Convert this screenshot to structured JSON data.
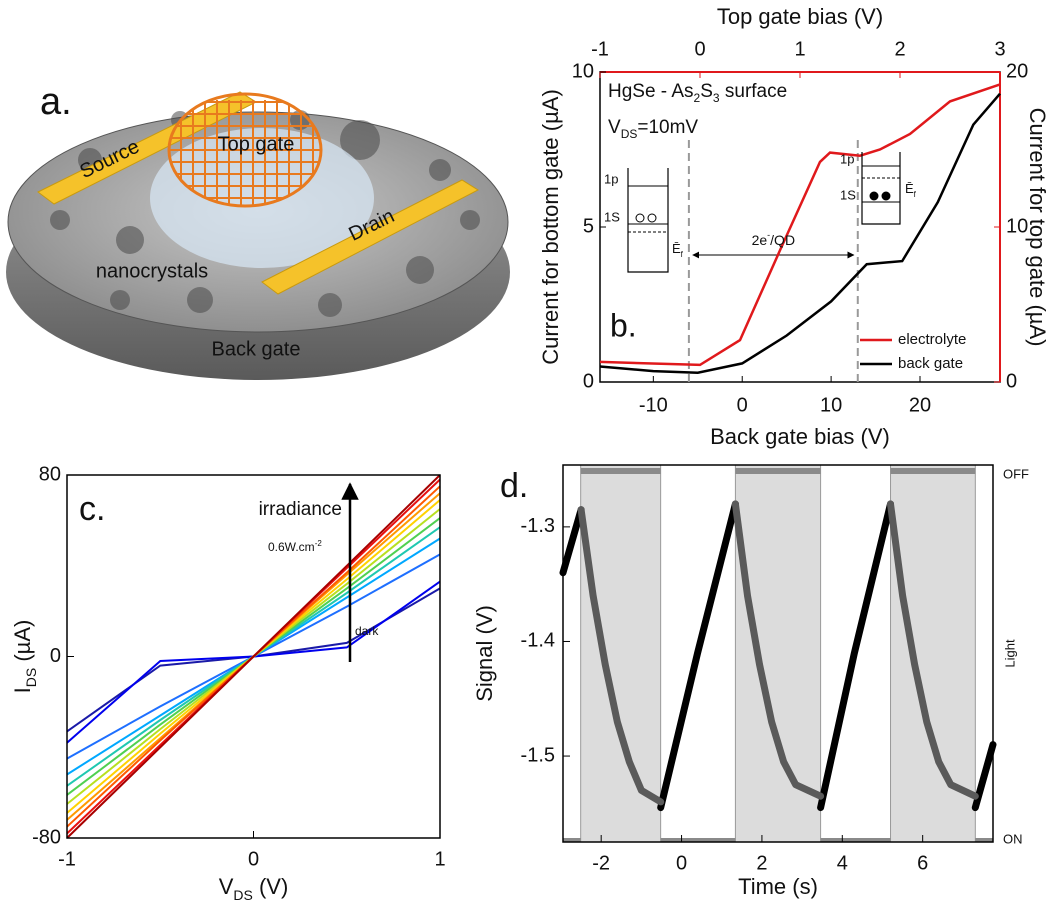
{
  "diagram": {
    "panel_label": "a.",
    "labels": {
      "source": "Source",
      "top_gate": "Top gate",
      "drain": "Drain",
      "nanocrystals": "nanocrystals",
      "back_gate": "Back gate"
    }
  },
  "chart_data": [
    {
      "type": "line",
      "panel_label": "b.",
      "xlabel": "Back gate bias (V)",
      "x2label": "Top gate bias (V)",
      "ylabel": "Current for bottom gate (µA)",
      "y2label": "Current for top gate (µA)",
      "xlim": [
        -16,
        29
      ],
      "xticks": [
        -10,
        0,
        10,
        20
      ],
      "x2lim": [
        -1,
        3
      ],
      "x2ticks": [
        -1,
        0,
        1,
        2,
        3
      ],
      "ylim": [
        0,
        10
      ],
      "yticks": [
        0,
        5,
        10
      ],
      "y2lim": [
        0,
        20
      ],
      "y2ticks": [
        0,
        10,
        20
      ],
      "legend": "lower right",
      "series": [
        {
          "name": "electrolyte",
          "color": "#e0191c",
          "axis": "y2",
          "xaxis": "x2",
          "x": [
            -1,
            0,
            0.4,
            0.8,
            1.2,
            1.3,
            1.6,
            1.8,
            2.1,
            2.5,
            3
          ],
          "values": [
            1.3,
            1.1,
            2.7,
            8.5,
            14.2,
            14.8,
            14.6,
            15,
            16,
            18.1,
            19.2
          ]
        },
        {
          "name": "back gate",
          "color": "#000000",
          "x": [
            -16,
            -10,
            -5,
            0,
            5,
            10,
            14,
            18,
            22,
            26,
            29
          ],
          "values": [
            0.5,
            0.35,
            0.3,
            0.6,
            1.5,
            2.6,
            3.8,
            3.9,
            5.8,
            8.3,
            9.3
          ]
        }
      ],
      "vlines": [
        -6,
        13
      ],
      "annotations": [
        {
          "parts": [
            {
              "text": "HgSe - As"
            },
            {
              "text": "2",
              "sub": true
            },
            {
              "text": "S"
            },
            {
              "text": "3",
              "sub": true
            },
            {
              "text": " surface"
            }
          ]
        },
        {
          "parts": [
            {
              "text": "V"
            },
            {
              "text": "DS",
              "sub": true
            },
            {
              "text": "=10mV"
            }
          ]
        },
        {
          "parts": [
            {
              "text": "2e"
            },
            {
              "text": "-",
              "sup": true
            },
            {
              "text": "/QD"
            }
          ]
        }
      ],
      "insets": [
        {
          "levels": [
            "1p",
            "1S"
          ],
          "fermi": {
            "parts": [
              {
                "text": "Ē"
              },
              {
                "text": "f",
                "sub": true
              }
            ]
          },
          "filled": false
        },
        {
          "levels": [
            "1p",
            "1S"
          ],
          "fermi": {
            "parts": [
              {
                "text": "Ē"
              },
              {
                "text": "f",
                "sub": true
              }
            ]
          },
          "filled": true
        }
      ]
    },
    {
      "type": "line",
      "panel_label": "c.",
      "xlabel": {
        "parts": [
          {
            "text": "V"
          },
          {
            "text": "DS",
            "sub": true
          },
          {
            "text": " (V)"
          }
        ]
      },
      "ylabel": {
        "parts": [
          {
            "text": "I"
          },
          {
            "text": "DS",
            "sub": true
          },
          {
            "text": " (µA)"
          }
        ]
      },
      "xlim": [
        -1,
        1
      ],
      "xticks": [
        -1,
        0,
        1
      ],
      "ylim": [
        -80,
        80
      ],
      "yticks": [
        -80,
        0,
        80
      ],
      "x": [
        -1,
        -0.5,
        0,
        0.5,
        1
      ],
      "series": [
        {
          "color": "#1a1aa8",
          "values": [
            -33,
            -4,
            0,
            6,
            30
          ]
        },
        {
          "color": "#0000ee",
          "values": [
            -38,
            -2,
            0,
            4,
            33
          ]
        },
        {
          "color": "#1e6fff",
          "values": [
            -45,
            -22,
            0,
            22,
            45
          ]
        },
        {
          "color": "#00a8ff",
          "values": [
            -52,
            -26,
            0,
            26,
            52
          ]
        },
        {
          "color": "#20c8b0",
          "values": [
            -57,
            -28,
            0,
            28,
            57
          ]
        },
        {
          "color": "#50d050",
          "values": [
            -61,
            -30,
            0,
            30,
            61
          ]
        },
        {
          "color": "#b8e020",
          "values": [
            -65,
            -32,
            0,
            32,
            65
          ]
        },
        {
          "color": "#ffd200",
          "values": [
            -69,
            -34,
            0,
            34,
            69
          ]
        },
        {
          "color": "#ff9a00",
          "values": [
            -72,
            -36,
            0,
            36,
            72
          ]
        },
        {
          "color": "#ff5a00",
          "values": [
            -75,
            -37,
            0,
            37,
            75
          ]
        },
        {
          "color": "#e81010",
          "values": [
            -78,
            -39,
            0,
            39,
            78
          ]
        },
        {
          "color": "#a80000",
          "values": [
            -80,
            -40,
            0,
            40,
            80
          ]
        }
      ],
      "annotations": [
        {
          "parts": [
            {
              "text": "irradiance"
            }
          ]
        },
        {
          "parts": [
            {
              "text": "0.6W.cm"
            },
            {
              "text": "-2",
              "sup": true
            }
          ]
        },
        {
          "parts": [
            {
              "text": "dark"
            }
          ]
        }
      ]
    },
    {
      "type": "line",
      "panel_label": "d.",
      "xlabel": "Time (s)",
      "ylabel": "Signal (V)",
      "xlim": [
        -2.95,
        7.75
      ],
      "xticks": [
        -2,
        0,
        2,
        4,
        6
      ],
      "ylim": [
        -1.575,
        -1.246
      ],
      "yticks": [
        -1.5,
        -1.4,
        -1.3
      ],
      "right_axis": {
        "top": "OFF",
        "label": "Light",
        "bottom": "ON"
      },
      "light_intervals": [
        [
          -2.51,
          -0.52
        ],
        [
          1.34,
          3.46
        ],
        [
          5.2,
          7.31
        ]
      ],
      "series": [
        {
          "color": "#000000",
          "x": [
            -2.95,
            -2.5,
            null,
            -0.52,
            0.4,
            1.34,
            null,
            3.46,
            4.3,
            5.2,
            null,
            7.31,
            7.75
          ],
          "values": [
            -1.34,
            -1.285,
            null,
            -1.545,
            -1.41,
            -1.28,
            null,
            -1.545,
            -1.41,
            -1.28,
            null,
            -1.545,
            -1.49
          ]
        },
        {
          "color": "#5a5a5a",
          "x": [
            -2.5,
            -2.2,
            -1.9,
            -1.6,
            -1.3,
            -1.0,
            -0.52,
            null,
            1.34,
            1.64,
            1.94,
            2.24,
            2.54,
            2.84,
            3.46,
            null,
            5.2,
            5.5,
            5.8,
            6.1,
            6.4,
            6.7,
            7.31
          ],
          "values": [
            -1.285,
            -1.36,
            -1.42,
            -1.47,
            -1.505,
            -1.53,
            -1.54,
            null,
            -1.28,
            -1.36,
            -1.42,
            -1.47,
            -1.505,
            -1.525,
            -1.535,
            null,
            -1.28,
            -1.36,
            -1.42,
            -1.47,
            -1.505,
            -1.525,
            -1.535
          ]
        }
      ]
    }
  ]
}
